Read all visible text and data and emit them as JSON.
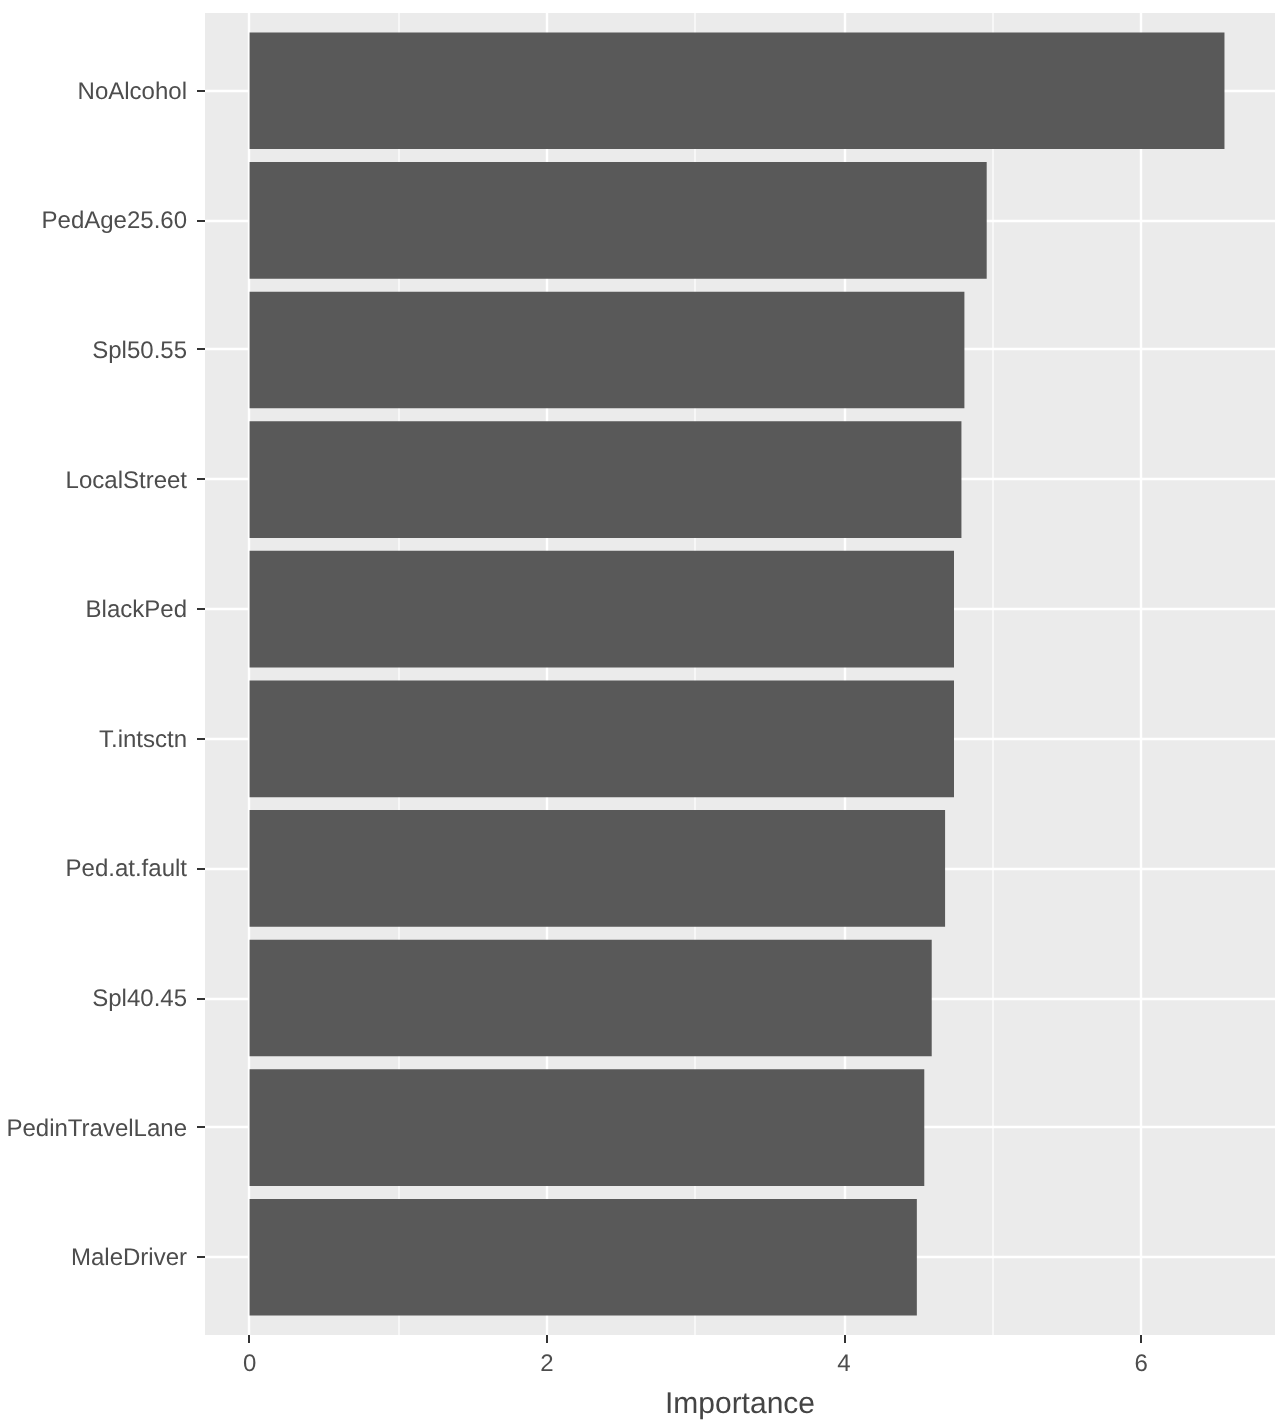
{
  "chart_data": {
    "type": "bar",
    "orientation": "horizontal",
    "xlabel": "Importance",
    "categories": [
      "NoAlcohol",
      "PedAge25.60",
      "Spl50.55",
      "LocalStreet",
      "BlackPed",
      "T.intsctn",
      "Ped.at.fault",
      "Spl40.45",
      "PedinTravelLane",
      "MaleDriver"
    ],
    "values": [
      6.56,
      4.96,
      4.81,
      4.79,
      4.74,
      4.74,
      4.68,
      4.59,
      4.54,
      4.49
    ],
    "color": "#595959",
    "xlim": [
      -0.3,
      6.9
    ],
    "xticks": [
      0,
      2,
      4,
      6
    ],
    "grid": true
  }
}
